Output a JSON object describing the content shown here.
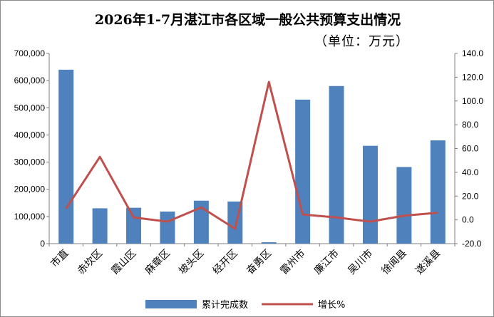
{
  "chart_data": {
    "type": "bar",
    "title": "2026年1-7月湛江市各区域一般公共预算支出情况",
    "subtitle": "（单位：万元）",
    "categories": [
      "市直",
      "赤坎区",
      "霞山区",
      "麻章区",
      "坡头区",
      "经开区",
      "奋勇区",
      "雷州市",
      "廉江市",
      "吴川市",
      "徐闻县",
      "遂溪县"
    ],
    "series": [
      {
        "name": "累计完成数",
        "type": "bar",
        "axis": "left",
        "color": "#4f81bd",
        "values": [
          640000,
          130000,
          132000,
          118000,
          158000,
          155000,
          5000,
          530000,
          580000,
          360000,
          282000,
          380000
        ]
      },
      {
        "name": "增长%",
        "type": "line",
        "axis": "right",
        "color": "#c0504d",
        "values": [
          9.5,
          53.0,
          2.0,
          -1.5,
          10.5,
          -7.5,
          116.0,
          4.5,
          2.0,
          -1.5,
          3.5,
          6.0
        ]
      }
    ],
    "y_left": {
      "lim": [
        0,
        700000
      ],
      "ticks": [
        "0",
        "100,000",
        "200,000",
        "300,000",
        "400,000",
        "500,000",
        "600,000",
        "700,000"
      ]
    },
    "y_right": {
      "lim": [
        -20,
        140
      ],
      "ticks": [
        "-20.0",
        "0.0",
        "20.0",
        "40.0",
        "60.0",
        "80.0",
        "100.0",
        "120.0",
        "140.0"
      ]
    },
    "grid": false,
    "legend": "bottom-center"
  }
}
